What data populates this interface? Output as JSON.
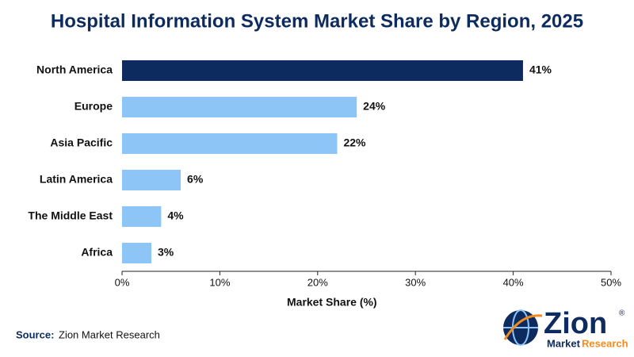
{
  "chart_data": {
    "type": "barh",
    "title": "Hospital Information System Market Share by Region, 2025",
    "categories": [
      "North America",
      "Europe",
      "Asia Pacific",
      "Latin America",
      "The Middle East",
      "Africa"
    ],
    "values": [
      41,
      24,
      22,
      6,
      4,
      3
    ],
    "value_labels": [
      "41%",
      "24%",
      "22%",
      "6%",
      "4%",
      "3%"
    ],
    "colors": [
      "#0d2b5e",
      "#8ec5f7",
      "#8ec5f7",
      "#8ec5f7",
      "#8ec5f7",
      "#8ec5f7"
    ],
    "xlim": [
      0,
      50
    ],
    "xticks": [
      {
        "value": 0,
        "label": "0%"
      },
      {
        "value": 10,
        "label": "10%"
      },
      {
        "value": 20,
        "label": "20%"
      },
      {
        "value": 30,
        "label": "30%"
      },
      {
        "value": 40,
        "label": "40%"
      },
      {
        "value": 50,
        "label": "50%"
      }
    ],
    "xlabel": "Market Share (%)",
    "grid": false,
    "source": {
      "label": "Source:",
      "text": "Zion Market Research"
    },
    "logo": {
      "name": "Zion",
      "mark": "®",
      "tagline_1": "Market",
      "tagline_2": "Research"
    }
  }
}
